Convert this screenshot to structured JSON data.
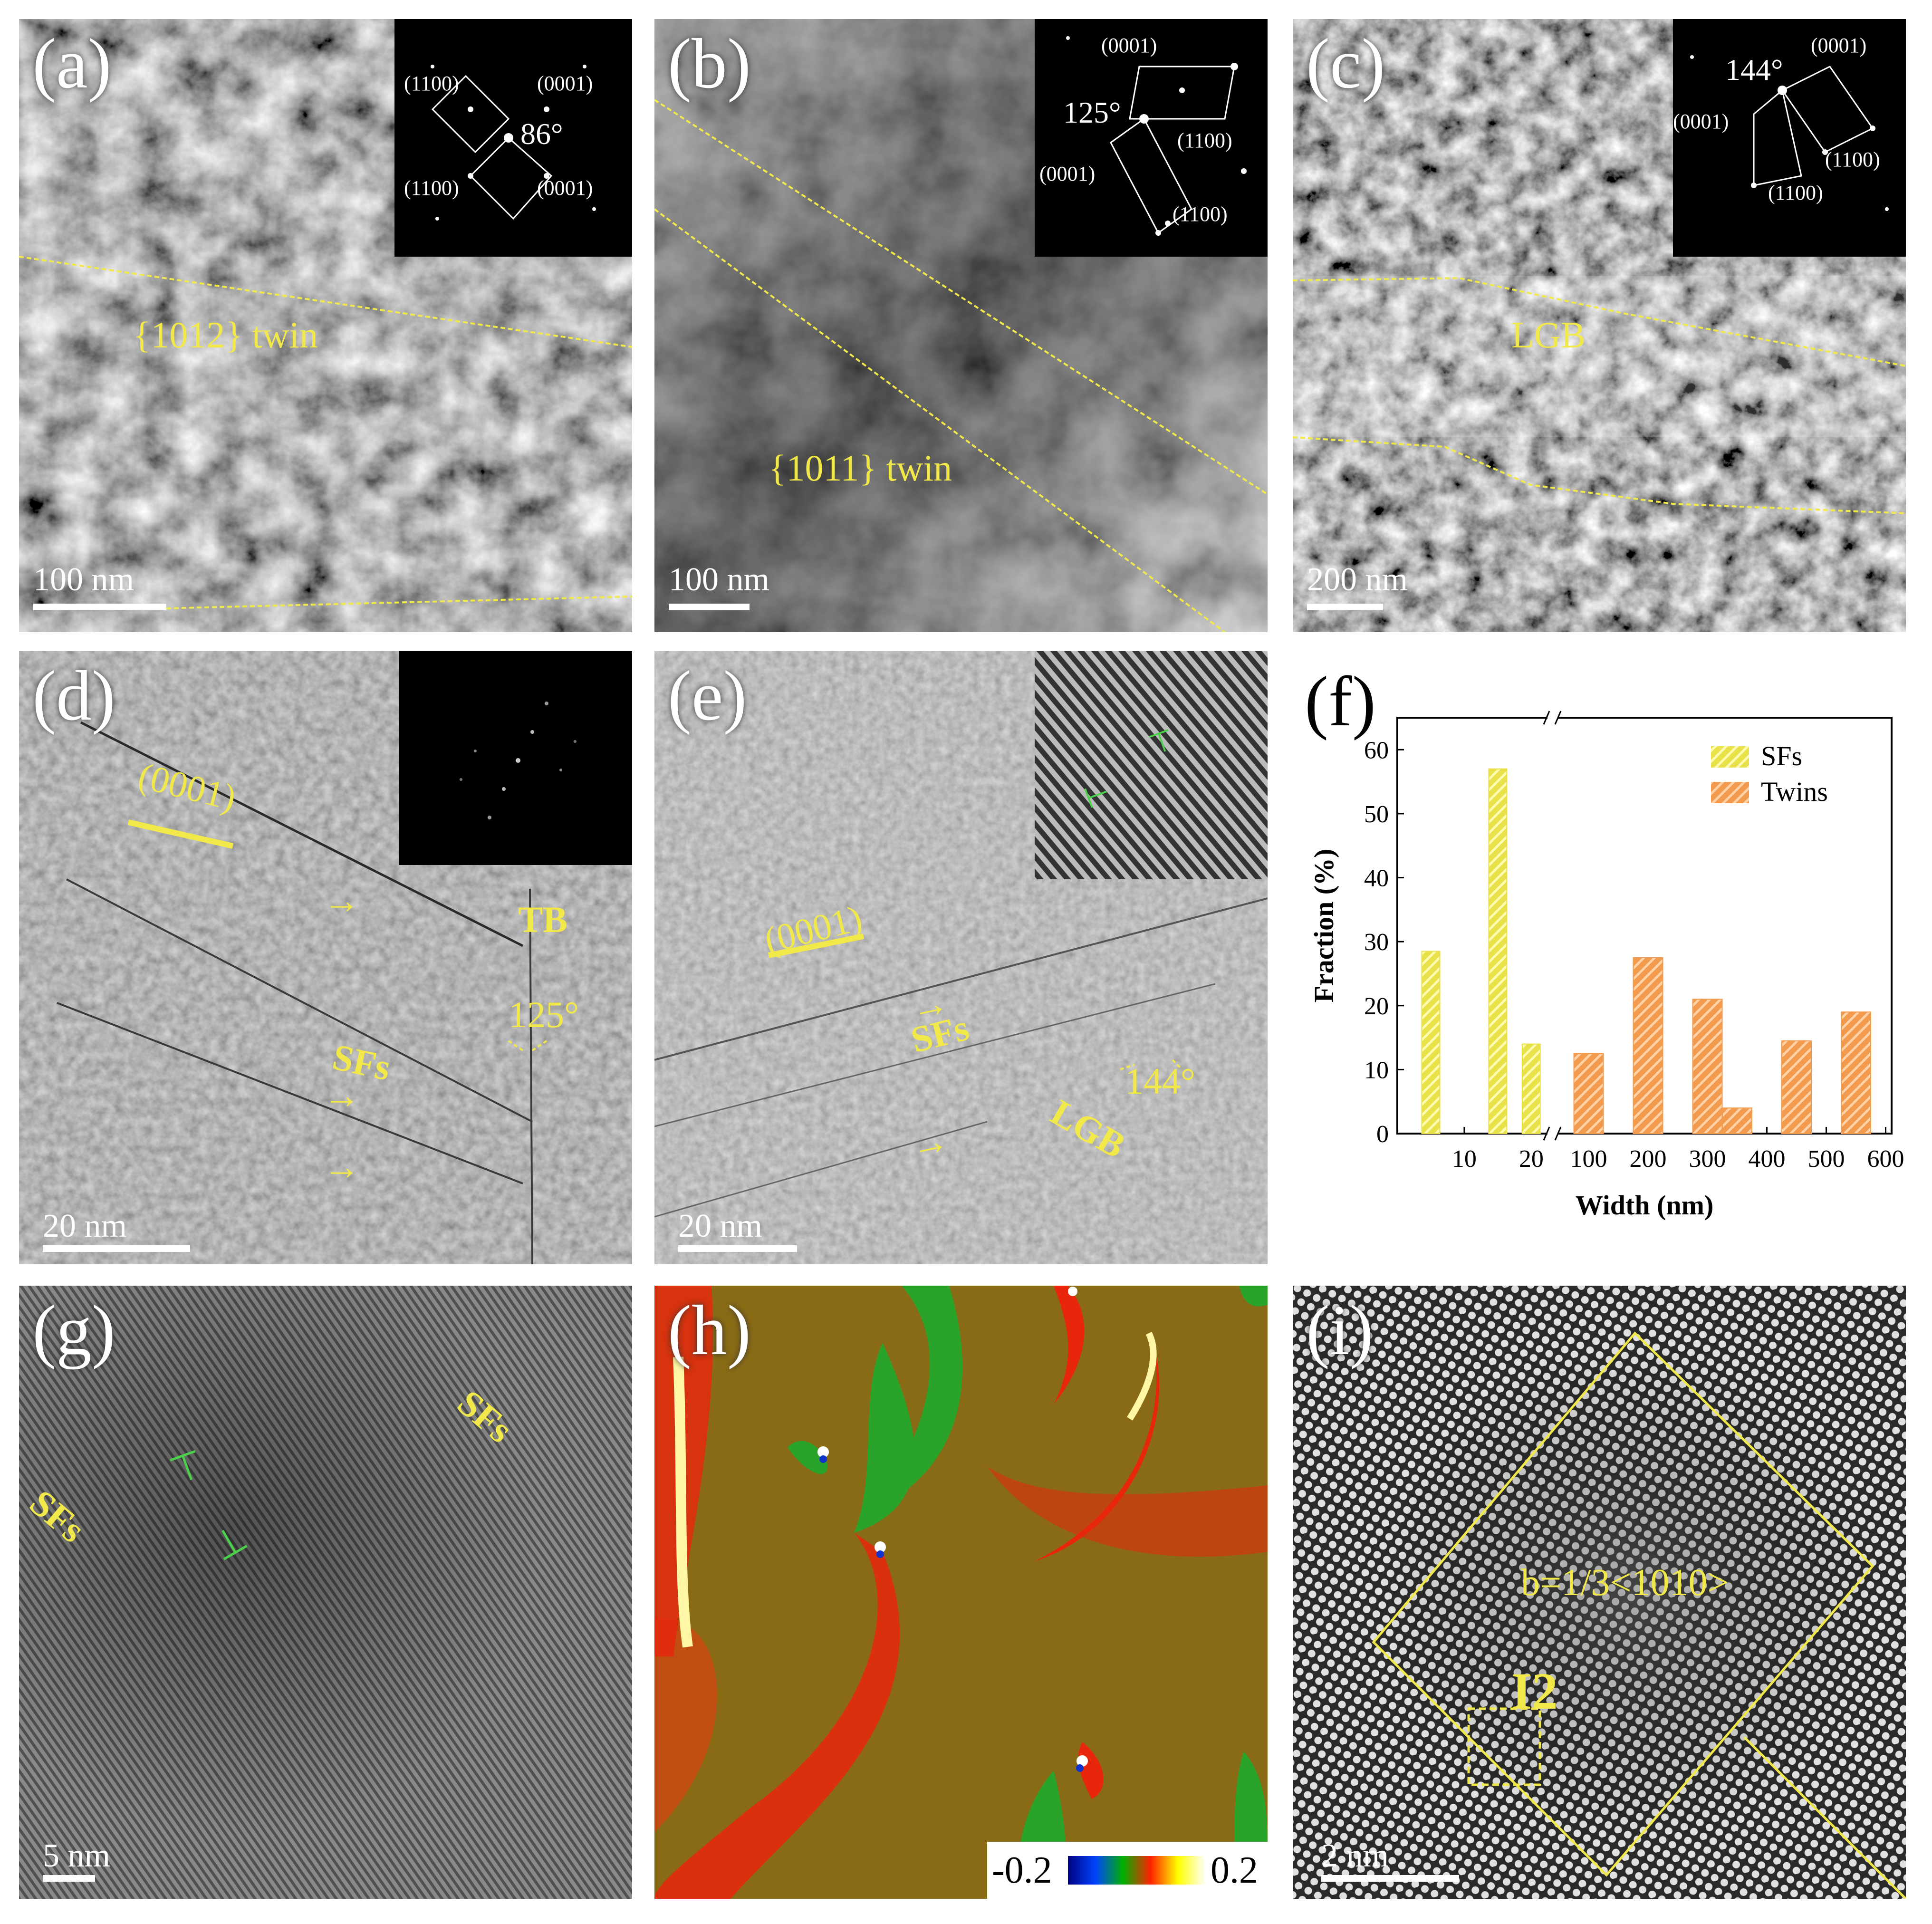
{
  "panels": {
    "a": {
      "label": "(a)",
      "scale": "100 nm",
      "twin": "{1012} twin",
      "sad": [
        "(1100)",
        "(0001)",
        "86°",
        "(1100)",
        "(0001)"
      ]
    },
    "b": {
      "label": "(b)",
      "scale": "100 nm",
      "twin": "{1011} twin",
      "sad": [
        "(0001)",
        "125°",
        "(1100)",
        "(0001)",
        "(1100)"
      ]
    },
    "c": {
      "label": "(c)",
      "scale": "200 nm",
      "boundary": "LGB",
      "sad": [
        "144°",
        "(0001)",
        "(0001)",
        "(1100)",
        "(1100)"
      ]
    },
    "d": {
      "label": "(d)",
      "scale": "20 nm",
      "plane": "(0001)",
      "tb": "TB",
      "angle": "125°",
      "sfs": "SFs"
    },
    "e": {
      "label": "(e)",
      "scale": "20 nm",
      "plane": "(0001)",
      "sfs": "SFs",
      "angle": "144°",
      "lgb": "LGB"
    },
    "f": {
      "label": "(f)"
    },
    "g": {
      "label": "(g)",
      "scale": "5 nm",
      "sfs_left": "SFs",
      "sfs_right": "SFs"
    },
    "h": {
      "label": "(h)",
      "cbar_min": "-0.2",
      "cbar_max": "0.2"
    },
    "i": {
      "label": "(i)",
      "scale": "2 nm",
      "burgers": "b=1/3<1010>",
      "id": "I2"
    }
  },
  "chart_data": {
    "type": "bar",
    "ylabel": "Fraction (%)",
    "xlabel": "Width (nm)",
    "ylim": [
      0,
      65
    ],
    "yticks": [
      "0",
      "10",
      "20",
      "30",
      "40",
      "50",
      "60"
    ],
    "xticks_left": [
      "10",
      "20"
    ],
    "xticks_right": [
      "100",
      "200",
      "300",
      "400",
      "500",
      "600"
    ],
    "series": [
      {
        "name": "SFs",
        "color": "#e9e14a",
        "x": [
          5,
          15,
          20
        ],
        "values": [
          28.5,
          57,
          14
        ]
      },
      {
        "name": "Twins",
        "color": "#f29a4e",
        "x": [
          100,
          200,
          300,
          350,
          450,
          550
        ],
        "values": [
          12.5,
          27.5,
          21,
          4,
          14.5,
          19
        ]
      }
    ]
  }
}
